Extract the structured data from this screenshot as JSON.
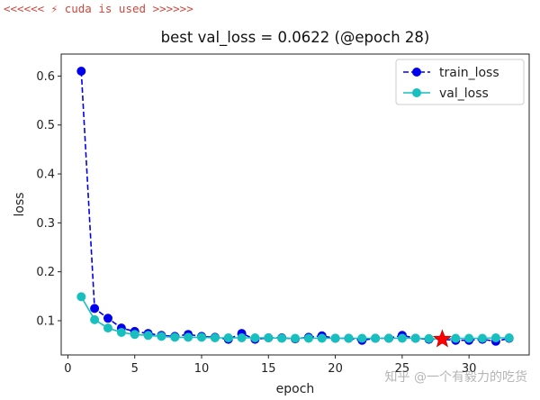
{
  "console": {
    "log_line": "<<<<<< ⚡ cuda is used >>>>>>"
  },
  "watermark": "知乎 @一个有毅力的吃货",
  "chart_data": {
    "type": "line",
    "title": "best val_loss = 0.0622 (@epoch 28)",
    "xlabel": "epoch",
    "ylabel": "loss",
    "xlim": [
      -0.5,
      34.5
    ],
    "ylim": [
      0.03,
      0.645
    ],
    "xticks": [
      0,
      5,
      10,
      15,
      20,
      25,
      30
    ],
    "yticks": [
      0.1,
      0.2,
      0.3,
      0.4,
      0.5,
      0.6
    ],
    "ytick_labels": [
      "0.1",
      "0.2",
      "0.3",
      "0.4",
      "0.5",
      "0.6"
    ],
    "grid": false,
    "legend_position": "top-right",
    "x": [
      1,
      2,
      3,
      4,
      5,
      6,
      7,
      8,
      9,
      10,
      11,
      12,
      13,
      14,
      15,
      16,
      17,
      18,
      19,
      20,
      21,
      22,
      23,
      24,
      25,
      26,
      27,
      28,
      29,
      30,
      31,
      32,
      33
    ],
    "series": [
      {
        "name": "train_loss",
        "color": "#0000ee",
        "line_style": "dashed",
        "marker": "circle",
        "values": [
          0.61,
          0.125,
          0.105,
          0.085,
          0.078,
          0.074,
          0.07,
          0.068,
          0.072,
          0.068,
          0.066,
          0.062,
          0.074,
          0.062,
          0.065,
          0.065,
          0.063,
          0.066,
          0.069,
          0.064,
          0.064,
          0.06,
          0.064,
          0.064,
          0.07,
          0.064,
          0.062,
          0.062,
          0.06,
          0.06,
          0.062,
          0.058,
          0.064
        ]
      },
      {
        "name": "val_loss",
        "color": "#17bfbf",
        "line_style": "solid",
        "marker": "circle",
        "values": [
          0.149,
          0.102,
          0.085,
          0.076,
          0.072,
          0.07,
          0.068,
          0.066,
          0.066,
          0.066,
          0.065,
          0.065,
          0.065,
          0.065,
          0.065,
          0.064,
          0.064,
          0.064,
          0.064,
          0.064,
          0.064,
          0.064,
          0.064,
          0.064,
          0.064,
          0.064,
          0.0635,
          0.0622,
          0.064,
          0.064,
          0.064,
          0.065,
          0.065
        ]
      }
    ],
    "best_marker": {
      "x": 28,
      "y": 0.0622,
      "color": "#ff0000",
      "shape": "star"
    }
  }
}
